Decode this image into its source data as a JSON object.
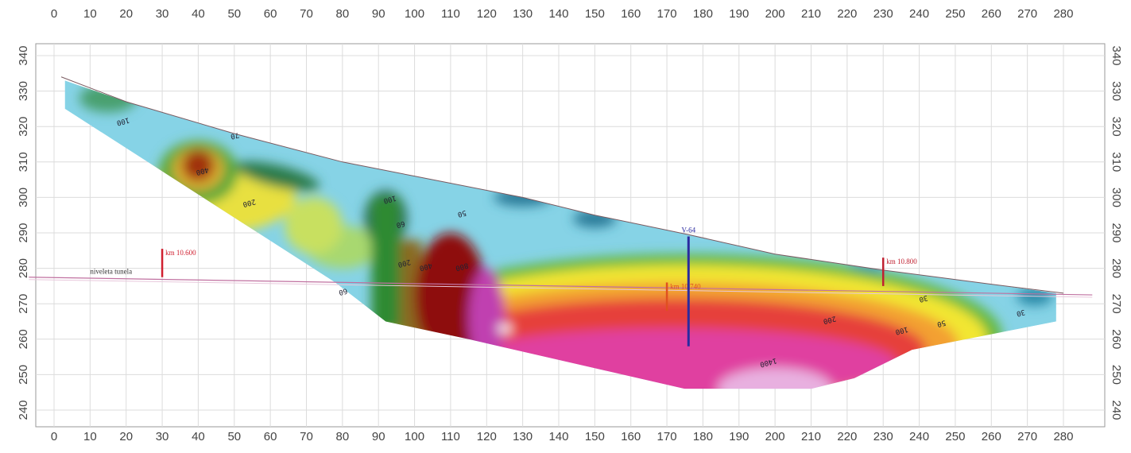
{
  "chart_data": {
    "type": "heatmap",
    "title": "",
    "xlabel": "",
    "ylabel": "",
    "xlim": [
      -5,
      288
    ],
    "ylim": [
      237,
      343
    ],
    "x_ticks": [
      0,
      10,
      20,
      30,
      40,
      50,
      60,
      70,
      80,
      90,
      100,
      110,
      120,
      130,
      140,
      150,
      160,
      170,
      180,
      190,
      200,
      210,
      220,
      230,
      240,
      250,
      260,
      270,
      280
    ],
    "y_ticks": [
      240,
      250,
      260,
      270,
      280,
      290,
      300,
      310,
      320,
      330,
      340
    ],
    "grid": true,
    "section_outline": [
      [
        3,
        333
      ],
      [
        20,
        327
      ],
      [
        50,
        318
      ],
      [
        80,
        310
      ],
      [
        100,
        306
      ],
      [
        130,
        300
      ],
      [
        150,
        295
      ],
      [
        176,
        289.5
      ],
      [
        200,
        284
      ],
      [
        230,
        279.5
      ],
      [
        260,
        275.5
      ],
      [
        278,
        273
      ],
      [
        278,
        265
      ],
      [
        238,
        257
      ],
      [
        222,
        249
      ],
      [
        210,
        246
      ],
      [
        175,
        246
      ],
      [
        115,
        260
      ],
      [
        92,
        265
      ],
      [
        78,
        276
      ],
      [
        3,
        325
      ]
    ],
    "surface_line": [
      [
        2,
        334
      ],
      [
        20,
        327
      ],
      [
        50,
        318
      ],
      [
        80,
        310
      ],
      [
        100,
        306
      ],
      [
        130,
        300
      ],
      [
        150,
        295
      ],
      [
        176,
        289.5
      ],
      [
        200,
        284
      ],
      [
        230,
        279.5
      ],
      [
        260,
        275.5
      ],
      [
        280,
        273
      ]
    ],
    "tunnel_line": {
      "label": "niveleta tunela",
      "points": [
        [
          -7,
          277.5
        ],
        [
          288,
          272.5
        ]
      ],
      "color": "#c070a0"
    },
    "stations": [
      {
        "label": "km 10.600",
        "x": 30,
        "y_range": [
          277.5,
          285.5
        ],
        "color": "#d02030"
      },
      {
        "label": "km 10.740",
        "x": 170,
        "y_range": [
          268,
          276
        ],
        "color": "#e05020"
      },
      {
        "label": "km 10.800",
        "x": 230,
        "y_range": [
          275,
          283
        ],
        "color": "#c02030"
      }
    ],
    "borehole": {
      "label": "V-64",
      "x": 176,
      "y_range": [
        258,
        289
      ],
      "color": "#2a2aa0"
    },
    "contour_labels": [
      {
        "text": "100",
        "x": 19,
        "y": 322
      },
      {
        "text": "70",
        "x": 50,
        "y": 318
      },
      {
        "text": "400",
        "x": 41,
        "y": 308
      },
      {
        "text": "200",
        "x": 54,
        "y": 299
      },
      {
        "text": "100",
        "x": 93,
        "y": 300
      },
      {
        "text": "60",
        "x": 96,
        "y": 293
      },
      {
        "text": "50",
        "x": 113,
        "y": 296
      },
      {
        "text": "60",
        "x": 80,
        "y": 274
      },
      {
        "text": "200",
        "x": 97,
        "y": 282
      },
      {
        "text": "400",
        "x": 103,
        "y": 281
      },
      {
        "text": "800",
        "x": 113,
        "y": 281
      },
      {
        "text": "30",
        "x": 241,
        "y": 272
      },
      {
        "text": "30",
        "x": 268,
        "y": 268
      },
      {
        "text": "200",
        "x": 215,
        "y": 266
      },
      {
        "text": "100",
        "x": 235,
        "y": 263
      },
      {
        "text": "50",
        "x": 246,
        "y": 265
      },
      {
        "text": "1400",
        "x": 198,
        "y": 254
      }
    ],
    "colors": {
      "low": "#7fd0e4",
      "mid": "#f0e030",
      "high": "#8b1010",
      "very_high": "#d040b0"
    }
  }
}
